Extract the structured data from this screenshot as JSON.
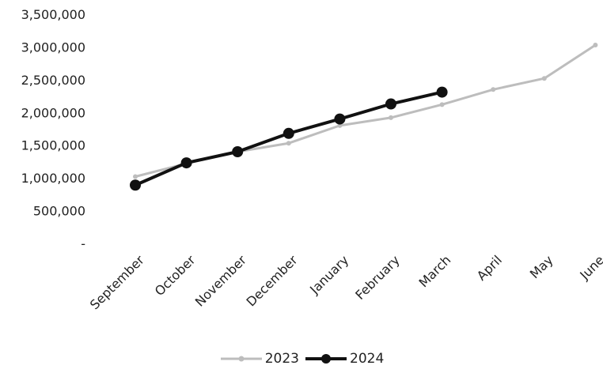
{
  "chart_data": {
    "type": "line",
    "title": "",
    "xlabel": "",
    "ylabel": "",
    "categories": [
      "September",
      "October",
      "November",
      "December",
      "January",
      "February",
      "March",
      "April",
      "May",
      "June"
    ],
    "ylim": [
      0,
      3500000
    ],
    "yticks": [
      0,
      500000,
      1000000,
      1500000,
      2000000,
      2500000,
      3000000,
      3500000
    ],
    "ytick_labels": [
      "-",
      "500,000",
      "1,000,000",
      "1,500,000",
      "2,000,000",
      "2,500,000",
      "3,000,000",
      "3,500,000"
    ],
    "grid": false,
    "legend_position": "bottom",
    "series": [
      {
        "name": "2023",
        "color": "#bdbdbd",
        "marker": "small-circle",
        "values": [
          1020000,
          1220000,
          1400000,
          1530000,
          1800000,
          1920000,
          2120000,
          2350000,
          2520000,
          3030000
        ]
      },
      {
        "name": "2024",
        "color": "#111111",
        "marker": "filled-circle",
        "values": [
          890000,
          1230000,
          1400000,
          1680000,
          1900000,
          2130000,
          2310000,
          null,
          null,
          null
        ]
      }
    ]
  }
}
